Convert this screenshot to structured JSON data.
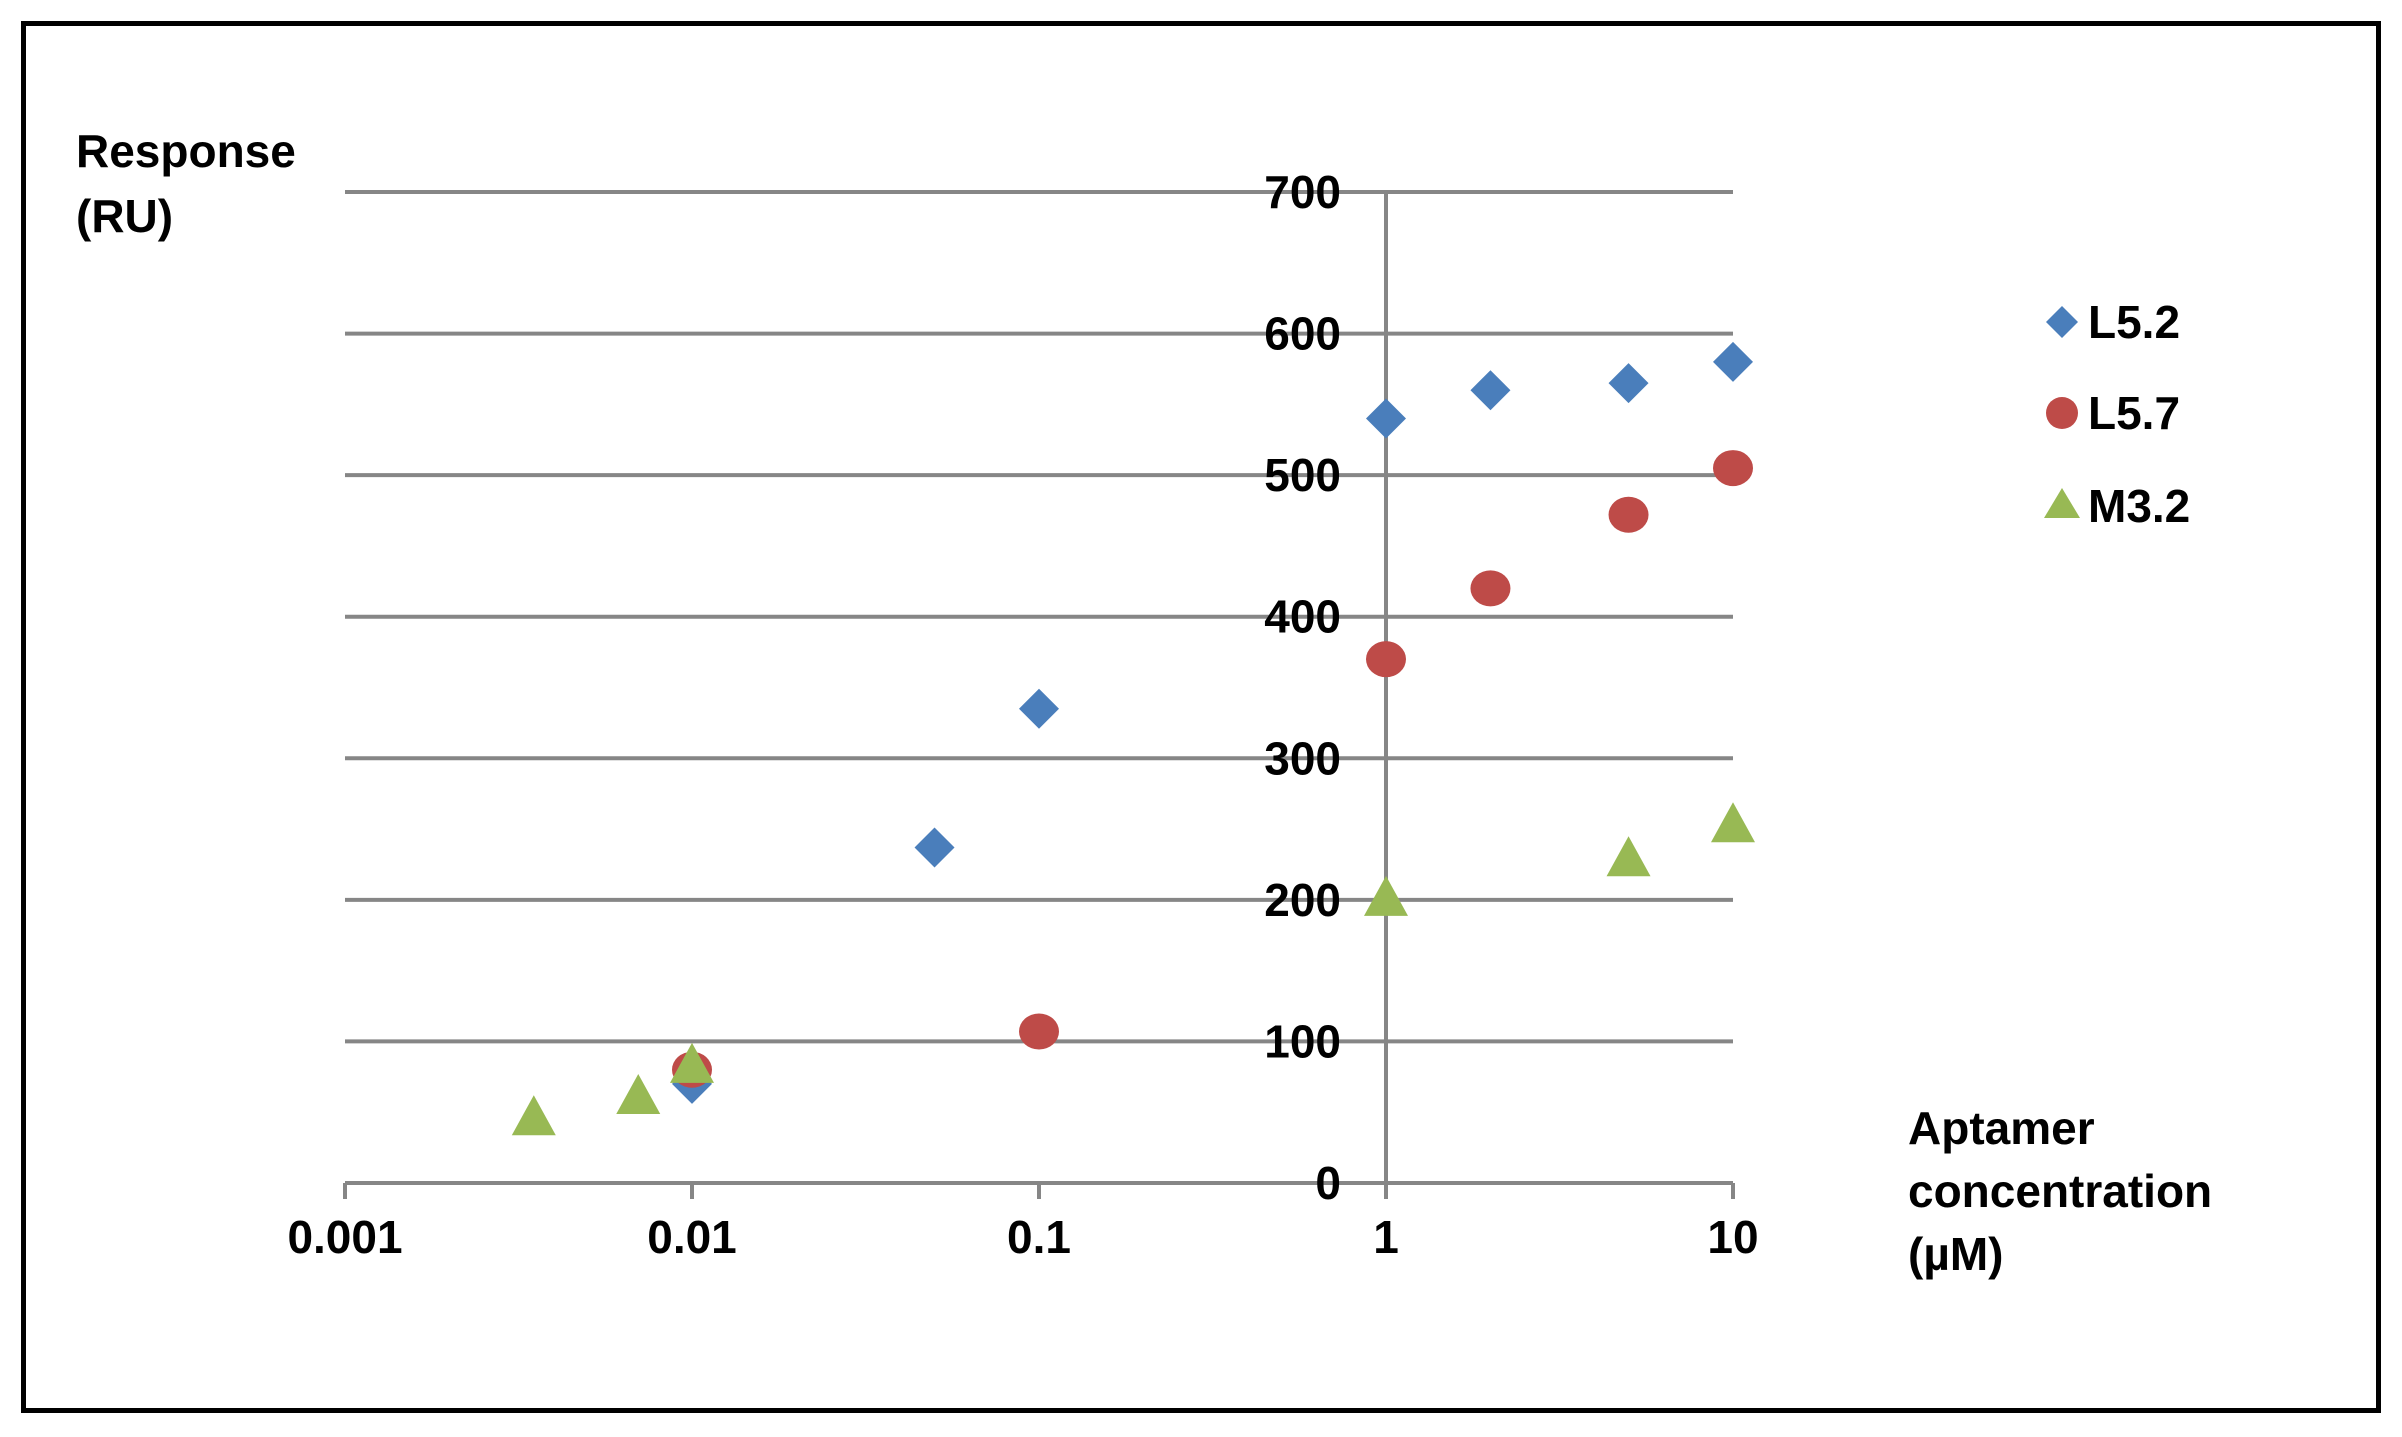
{
  "chart_data": {
    "type": "scatter",
    "title": "",
    "ylabel_lines": [
      "Response",
      "(RU)"
    ],
    "xlabel_lines": [
      "Aptamer",
      "concentration",
      "(µM)"
    ],
    "x_scale": "log",
    "xlim": [
      0.001,
      10
    ],
    "ylim": [
      0,
      700
    ],
    "x_ticks": [
      0.001,
      0.01,
      0.1,
      1,
      10
    ],
    "x_tick_labels": [
      "0.001",
      "0.01",
      "0.1",
      "1",
      "10"
    ],
    "y_ticks": [
      0,
      100,
      200,
      300,
      400,
      500,
      600,
      700
    ],
    "y_tick_labels": [
      "0",
      "100",
      "200",
      "300",
      "400",
      "500",
      "600",
      "700"
    ],
    "grid": "horizontal",
    "legend_position": "right",
    "series": [
      {
        "name": "L5.2",
        "marker": "diamond",
        "color": "#4a7ebb",
        "x": [
          0.01,
          0.05,
          0.1,
          1,
          2,
          5,
          10
        ],
        "y": [
          70,
          237,
          335,
          540,
          560,
          565,
          580
        ]
      },
      {
        "name": "L5.7",
        "marker": "circle",
        "color": "#be4b48",
        "x": [
          0.01,
          0.1,
          1,
          2,
          5,
          10
        ],
        "y": [
          80,
          107,
          370,
          420,
          472,
          505
        ]
      },
      {
        "name": "M3.2",
        "marker": "triangle",
        "color": "#98b954",
        "x": [
          0.0035,
          0.007,
          0.01,
          1,
          5,
          10
        ],
        "y": [
          45,
          60,
          82,
          200,
          228,
          252
        ]
      }
    ]
  }
}
